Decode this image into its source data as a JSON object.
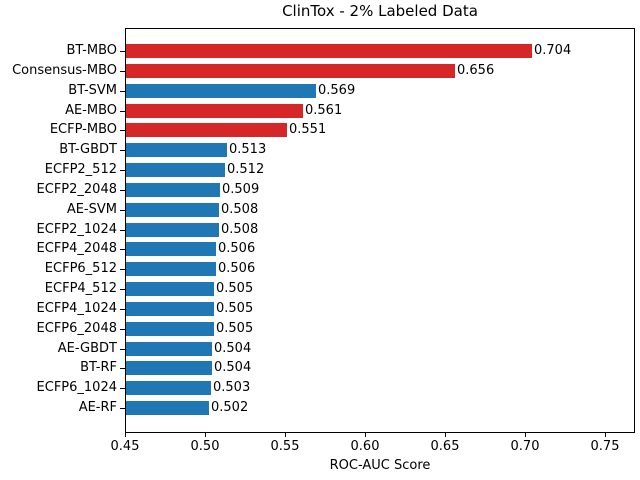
{
  "chart_data": {
    "type": "bar",
    "orientation": "horizontal",
    "title": "ClinTox - 2% Labeled Data",
    "xlabel": "ROC-AUC Score",
    "ylabel": "",
    "categories": [
      "BT-MBO",
      "Consensus-MBO",
      "BT-SVM",
      "AE-MBO",
      "ECFP-MBO",
      "BT-GBDT",
      "ECFP2_512",
      "ECFP2_2048",
      "AE-SVM",
      "ECFP2_1024",
      "ECFP4_2048",
      "ECFP6_512",
      "ECFP4_512",
      "ECFP4_1024",
      "ECFP6_2048",
      "AE-GBDT",
      "BT-RF",
      "ECFP6_1024",
      "AE-RF"
    ],
    "values": [
      0.704,
      0.656,
      0.569,
      0.561,
      0.551,
      0.513,
      0.512,
      0.509,
      0.508,
      0.508,
      0.506,
      0.506,
      0.505,
      0.505,
      0.505,
      0.504,
      0.504,
      0.503,
      0.502
    ],
    "value_labels": [
      "0.704",
      "0.656",
      "0.569",
      "0.561",
      "0.551",
      "0.513",
      "0.512",
      "0.509",
      "0.508",
      "0.508",
      "0.506",
      "0.506",
      "0.505",
      "0.505",
      "0.505",
      "0.504",
      "0.504",
      "0.503",
      "0.502"
    ],
    "bar_colors": [
      "#d62728",
      "#d62728",
      "#1f77b4",
      "#d62728",
      "#d62728",
      "#1f77b4",
      "#1f77b4",
      "#1f77b4",
      "#1f77b4",
      "#1f77b4",
      "#1f77b4",
      "#1f77b4",
      "#1f77b4",
      "#1f77b4",
      "#1f77b4",
      "#1f77b4",
      "#1f77b4",
      "#1f77b4",
      "#1f77b4"
    ],
    "colors": {
      "mbo_highlight": "#d62728",
      "baseline": "#1f77b4",
      "text": "#000000",
      "background": "#ffffff"
    },
    "xlim": [
      0.45,
      0.769
    ],
    "xticks": [
      0.45,
      0.5,
      0.55,
      0.6,
      0.65,
      0.7,
      0.75
    ],
    "xtick_labels": [
      "0.45",
      "0.50",
      "0.55",
      "0.60",
      "0.65",
      "0.70",
      "0.75"
    ],
    "grid": false,
    "legend": null
  }
}
